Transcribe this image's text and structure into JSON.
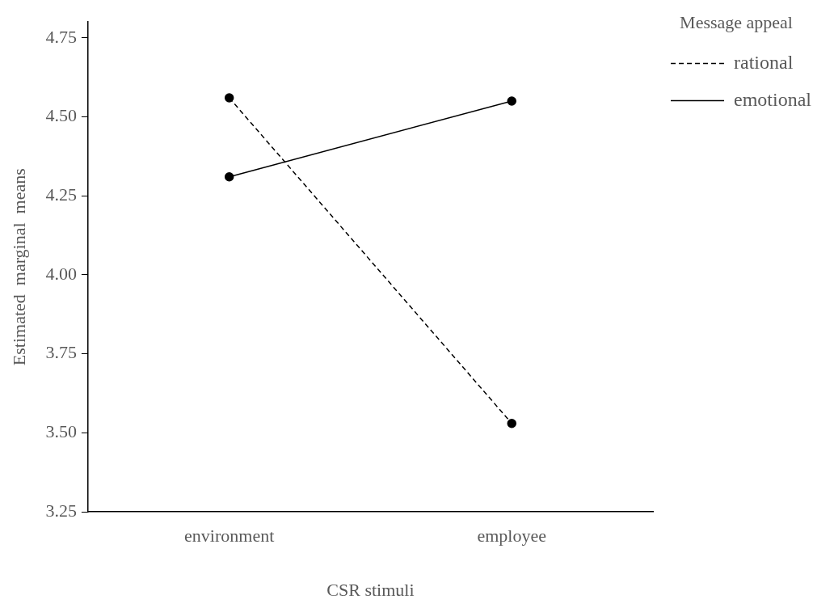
{
  "chart_data": {
    "type": "line",
    "xlabel": "CSR stimuli",
    "ylabel": "Estimated  marginal  means",
    "legend_title": "Message appeal",
    "categories": [
      "environment",
      "employee"
    ],
    "series": [
      {
        "name": "rational",
        "color": "#000000",
        "values": [
          4.56,
          3.53
        ],
        "line_style": "dashed"
      },
      {
        "name": "emotional",
        "color": "#000000",
        "values": [
          4.31,
          4.55
        ],
        "line_style": "solid"
      }
    ],
    "ylim": [
      3.25,
      4.8
    ],
    "yticks": [
      3.25,
      {
        "value": 3.5,
        "label": "3.50"
      },
      3.75,
      {
        "value": 4.0,
        "label": "4.00"
      },
      4.25,
      {
        "value": 4.5,
        "label": "4.50"
      },
      4.75
    ],
    "marker": "circle",
    "legend": "top right",
    "grid": false
  }
}
